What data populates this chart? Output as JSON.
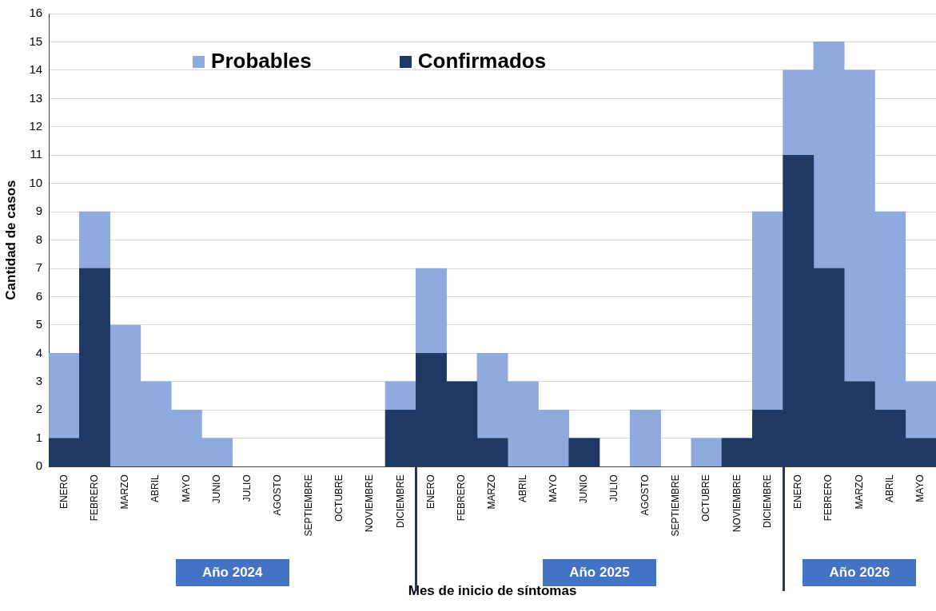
{
  "chart_data": {
    "type": "bar",
    "stacked": true,
    "xlabel": "Mes de inicio de síntomas",
    "ylabel": "Cantidad de casos",
    "categories": [
      "ENERO",
      "FEBRERO",
      "MARZO",
      "ABRIL",
      "MAYO",
      "JUNIO",
      "JULIO",
      "AGOSTO",
      "SEPTIEMBRE",
      "OCTUBRE",
      "NOVIEMBRE",
      "DICIEMBRE",
      "ENERO",
      "FEBRERO",
      "MARZO",
      "ABRIL",
      "MAYO",
      "JUNIO",
      "JULIO",
      "AGOSTO",
      "SEPTIEMBRE",
      "OCTUBRE",
      "NOVIEMBRE",
      "DICIEMBRE",
      "ENERO",
      "FEBRERO",
      "MARZO",
      "ABRIL",
      "MAYO"
    ],
    "series": [
      {
        "name": "Confirmados",
        "color": "#203864",
        "values": [
          1,
          7,
          0,
          0,
          0,
          0,
          0,
          0,
          0,
          0,
          0,
          2,
          4,
          3,
          1,
          0,
          0,
          1,
          0,
          0,
          0,
          0,
          1,
          2,
          11,
          7,
          3,
          2,
          1
        ]
      },
      {
        "name": "Probables",
        "color": "#8faadc",
        "values": [
          3,
          2,
          5,
          3,
          2,
          1,
          0,
          0,
          0,
          0,
          0,
          1,
          3,
          0,
          3,
          3,
          2,
          0,
          0,
          2,
          0,
          1,
          0,
          7,
          3,
          8,
          11,
          7,
          2
        ]
      }
    ],
    "ylim": [
      0,
      16
    ],
    "yticks": [
      0,
      1,
      2,
      3,
      4,
      5,
      6,
      7,
      8,
      9,
      10,
      11,
      12,
      13,
      14,
      15,
      16
    ],
    "grid": "y",
    "legend": "top left",
    "annotations": [
      "Año 2024",
      "Año 2025",
      "Año 2026"
    ]
  }
}
